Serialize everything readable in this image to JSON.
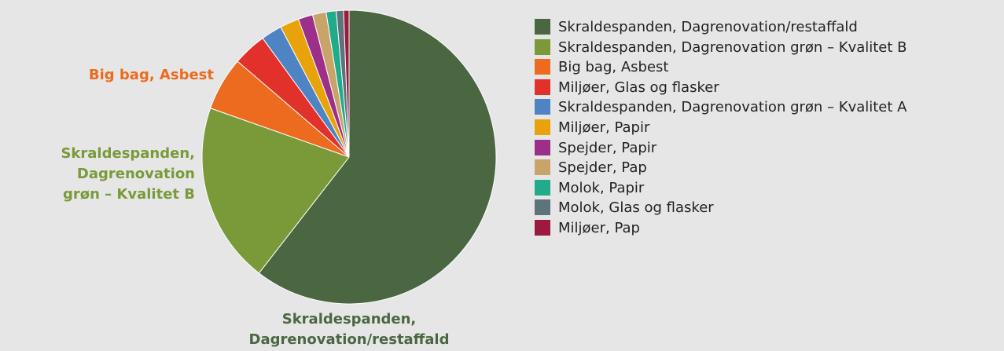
{
  "chart_data": {
    "type": "pie",
    "categories": [
      "Skraldespanden, Dagrenovation/restaffald",
      "Skraldespanden, Dagrenovation grøn – Kvalitet B",
      "Big bag, Asbest",
      "Miljøer, Glas og flasker",
      "Skraldespanden, Dagrenovation grøn – Kvalitet A",
      "Miljøer, Papir",
      "Spejder, Papir",
      "Spejder, Pap",
      "Molok, Papir",
      "Molok, Glas og flasker",
      "Miljøer, Pap"
    ],
    "values": [
      60.5,
      19.9,
      5.9,
      3.7,
      2.3,
      2.1,
      1.6,
      1.5,
      1.1,
      0.8,
      0.6
    ],
    "colors": [
      "#4a6741",
      "#7a9a3a",
      "#ec6b1e",
      "#e2302a",
      "#4f84c4",
      "#e8a30c",
      "#9b2f8a",
      "#c9a46a",
      "#21ab8a",
      "#5f737d",
      "#9b1a3d"
    ],
    "legend": "right"
  }
}
